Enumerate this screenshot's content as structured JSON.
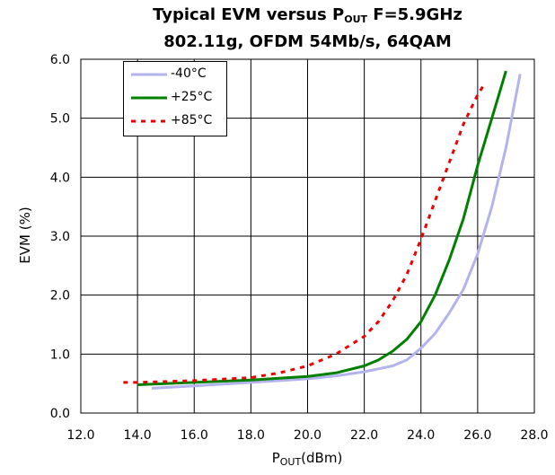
{
  "chart_data": {
    "type": "line",
    "title_main": "Typical EVM versus P",
    "title_sub": "OUT",
    "title_tail": " F=5.9GHz",
    "subtitle": "802.11g, OFDM 54Mb/s, 64QAM",
    "ylabel": "EVM (%)",
    "xlabel_main": "P",
    "xlabel_sub": "OUT",
    "xlabel_tail": "(dBm)",
    "xlim": [
      12.0,
      28.0
    ],
    "ylim": [
      0.0,
      6.0
    ],
    "x_ticks": [
      "12.0",
      "14.0",
      "16.0",
      "18.0",
      "20.0",
      "22.0",
      "24.0",
      "26.0",
      "28.0"
    ],
    "y_ticks": [
      "0.0",
      "1.0",
      "2.0",
      "3.0",
      "4.0",
      "5.0",
      "6.0"
    ],
    "grid": true,
    "legend_position": "top-left",
    "series": [
      {
        "name": "-40°C",
        "color": "#b3b3ee",
        "dash": "solid",
        "x": [
          14.5,
          16.0,
          18.0,
          20.0,
          21.0,
          22.0,
          22.5,
          23.0,
          23.5,
          24.0,
          24.5,
          25.0,
          25.5,
          26.0,
          26.5,
          27.0,
          27.5
        ],
        "y": [
          0.42,
          0.46,
          0.52,
          0.58,
          0.63,
          0.7,
          0.75,
          0.8,
          0.9,
          1.1,
          1.35,
          1.7,
          2.1,
          2.7,
          3.5,
          4.5,
          5.75
        ]
      },
      {
        "name": "+25°C",
        "color": "#008000",
        "dash": "solid",
        "x": [
          14.0,
          16.0,
          18.0,
          20.0,
          21.0,
          22.0,
          22.5,
          23.0,
          23.5,
          24.0,
          24.5,
          25.0,
          25.5,
          26.0,
          26.5,
          27.0
        ],
        "y": [
          0.48,
          0.52,
          0.56,
          0.62,
          0.68,
          0.8,
          0.9,
          1.05,
          1.25,
          1.55,
          2.0,
          2.6,
          3.3,
          4.2,
          5.0,
          5.8
        ]
      },
      {
        "name": "+85°C",
        "color": "#ee0000",
        "dash": "dashed",
        "x": [
          13.5,
          14.0,
          16.0,
          18.0,
          19.0,
          20.0,
          21.0,
          22.0,
          22.5,
          23.0,
          23.5,
          24.0,
          24.5,
          25.0,
          25.5,
          26.0,
          26.2
        ],
        "y": [
          0.52,
          0.52,
          0.55,
          0.6,
          0.68,
          0.8,
          1.0,
          1.3,
          1.55,
          1.9,
          2.35,
          2.95,
          3.6,
          4.25,
          4.9,
          5.4,
          5.55
        ]
      }
    ]
  }
}
